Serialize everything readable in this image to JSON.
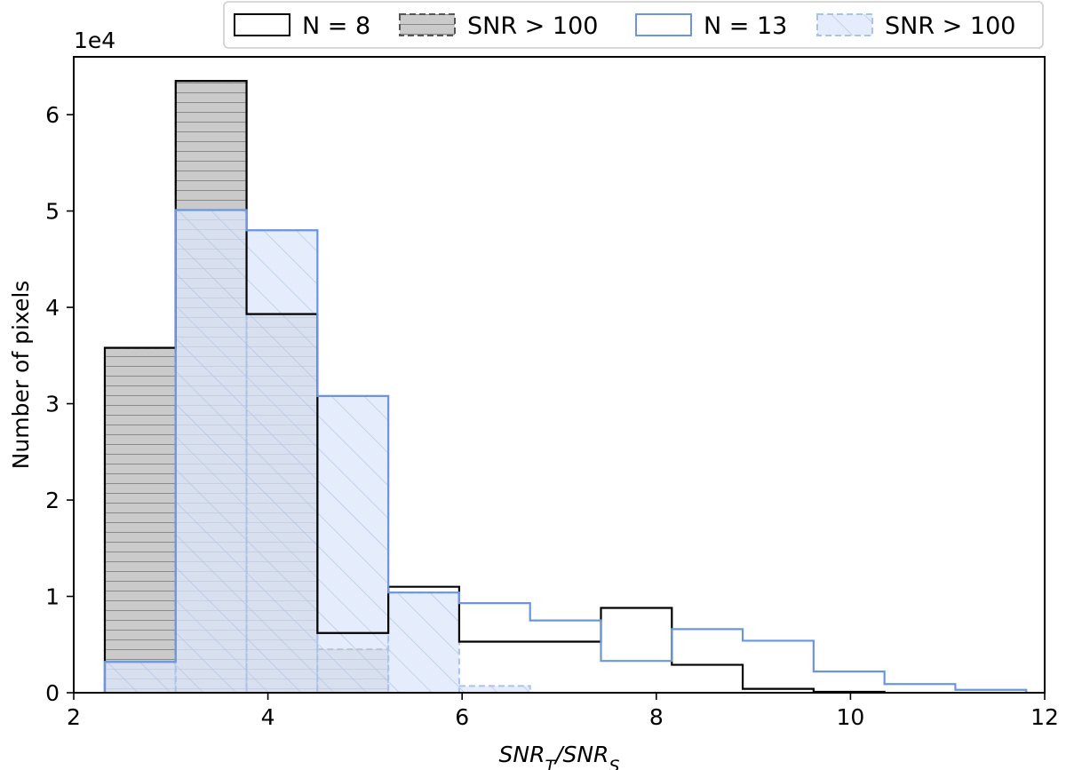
{
  "chart_data": {
    "type": "bar",
    "subtype": "histogram",
    "xlabel": "SNR_T/SNR_S",
    "ylabel": "Number of pixels",
    "y_offset_text": "1e4",
    "xlim": [
      2,
      12
    ],
    "ylim": [
      0,
      6.6
    ],
    "y_scale_factor": 10000,
    "x_ticks": [
      2,
      4,
      6,
      8,
      10,
      12
    ],
    "y_ticks": [
      0,
      1,
      2,
      3,
      4,
      5,
      6
    ],
    "grid": false,
    "legend_placement": "top-right, outside above axes",
    "series": [
      {
        "name": "N = 8",
        "style": "step",
        "color": "#000000",
        "bin_edges": [
          2.32,
          3.05,
          3.78,
          4.51,
          5.24,
          5.97,
          6.7,
          7.43,
          8.16,
          8.89,
          9.62,
          10.35
        ],
        "values": [
          3.58,
          6.35,
          3.93,
          0.62,
          1.1,
          0.53,
          0.53,
          0.88,
          0.29,
          0.04,
          0.01
        ]
      },
      {
        "name": "SNR > 100",
        "style": "filled-hatched",
        "hatch": "horizontal",
        "color": "#a6a6a6",
        "edge_color": "#555555",
        "bin_edges": [
          2.32,
          3.05,
          3.78,
          4.51,
          5.24
        ],
        "values": [
          3.58,
          6.35,
          3.93,
          0.45
        ]
      },
      {
        "name": "N = 13",
        "style": "step",
        "color": "#6a96e0",
        "bin_edges": [
          2.32,
          3.05,
          3.78,
          4.51,
          5.24,
          5.97,
          6.7,
          7.43,
          8.16,
          8.89,
          9.62,
          10.35,
          11.08,
          11.81
        ],
        "values": [
          0.32,
          5.01,
          4.8,
          3.08,
          1.04,
          0.93,
          0.75,
          0.33,
          0.66,
          0.54,
          0.22,
          0.09,
          0.03
        ]
      },
      {
        "name": "SNR > 100",
        "style": "filled-hatched",
        "hatch": "diagonal",
        "color": "#dce7fb",
        "edge_color": "#aac2ee",
        "bin_edges": [
          2.32,
          3.05,
          3.78,
          4.51,
          5.24,
          5.97,
          6.7
        ],
        "values": [
          0.32,
          5.01,
          4.8,
          3.08,
          1.04,
          0.07
        ]
      }
    ]
  }
}
